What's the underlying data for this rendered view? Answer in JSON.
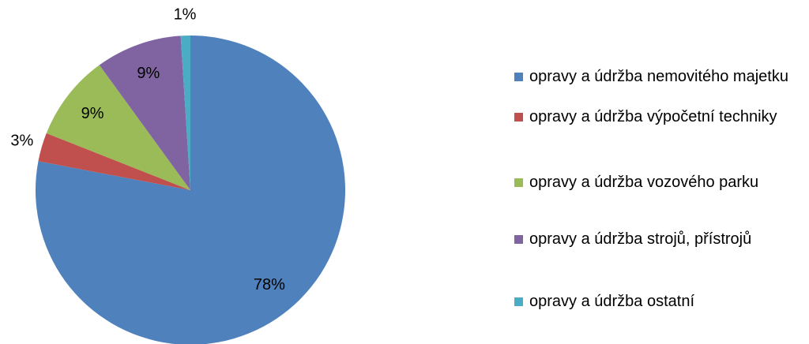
{
  "chart_data": {
    "type": "pie",
    "categories": [
      "opravy a údržba nemovitého majetku",
      "opravy a údržba výpočetní techniky",
      "opravy a údržba vozového parku",
      "opravy a údržba strojů, přístrojů",
      "opravy a údržba ostatní"
    ],
    "values": [
      78,
      3,
      9,
      9,
      1
    ],
    "value_labels": [
      "78%",
      "3%",
      "9%",
      "9%",
      "1%"
    ],
    "colors": [
      "#4f81bd",
      "#c0504d",
      "#9bbb59",
      "#8064a2",
      "#4bacc6"
    ],
    "legend": "right"
  }
}
